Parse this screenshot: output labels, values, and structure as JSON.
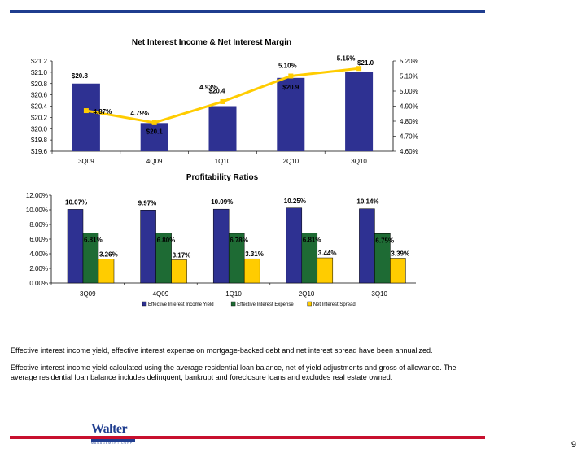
{
  "page": {
    "number": "9"
  },
  "chart_data": [
    {
      "type": "bar+line",
      "title": "Net Interest Income & Net Interest Margin",
      "categories": [
        "3Q09",
        "4Q09",
        "1Q10",
        "2Q10",
        "3Q10"
      ],
      "bars": {
        "values": [
          20.8,
          20.1,
          20.4,
          20.9,
          21.0
        ],
        "labels": [
          "$20.8",
          "$20.1",
          "$20.4",
          "$20.9",
          "$21.0"
        ]
      },
      "line": {
        "values": [
          4.87,
          4.79,
          4.93,
          5.1,
          5.15
        ],
        "labels": [
          "4.87%",
          "4.79%",
          "4.93%",
          "5.10%",
          "5.15%"
        ]
      },
      "y_left": {
        "range": [
          19.6,
          21.2
        ],
        "ticks": [
          "$19.6",
          "$19.8",
          "$20.0",
          "$20.2",
          "$20.4",
          "$20.6",
          "$20.8",
          "$21.0",
          "$21.2"
        ]
      },
      "y_right": {
        "range": [
          4.6,
          5.2
        ],
        "ticks": [
          "4.60%",
          "4.70%",
          "4.80%",
          "4.90%",
          "5.00%",
          "5.10%",
          "5.20%"
        ]
      },
      "colors": {
        "bar": "#2e3192",
        "line": "#ffcc00"
      }
    },
    {
      "type": "bar",
      "title": "Profitability Ratios",
      "categories": [
        "3Q09",
        "4Q09",
        "1Q10",
        "2Q10",
        "3Q10"
      ],
      "ylim": [
        0,
        12
      ],
      "y_ticks": [
        "0.00%",
        "2.00%",
        "4.00%",
        "6.00%",
        "8.00%",
        "10.00%",
        "12.00%"
      ],
      "series": [
        {
          "name": "Effective Interest Income Yield",
          "values": [
            10.07,
            9.97,
            10.09,
            10.25,
            10.14
          ],
          "labels": [
            "10.07%",
            "9.97%",
            "10.09%",
            "10.25%",
            "10.14%"
          ],
          "color": "#2e3192"
        },
        {
          "name": "Effective Interest Expense",
          "values": [
            6.81,
            6.8,
            6.78,
            6.81,
            6.75
          ],
          "labels": [
            "6.81%",
            "6.80%",
            "6.78%",
            "6.81%",
            "6.75%"
          ],
          "color": "#1e6b34"
        },
        {
          "name": "Net Interest Spread",
          "values": [
            3.26,
            3.17,
            3.31,
            3.44,
            3.39
          ],
          "labels": [
            "3.26%",
            "3.17%",
            "3.31%",
            "3.44%",
            "3.39%"
          ],
          "color": "#ffcc00"
        }
      ],
      "legend": "bottom"
    }
  ],
  "notes": [
    "Effective interest income yield, effective interest expense on mortgage-backed debt and net interest spread have been annualized.",
    "Effective interest income yield calculated using the average residential loan balance, net of yield adjustments and gross of allowance.  The average residential loan balance includes delinquent, bankrupt and foreclosure loans and excludes real estate owned."
  ],
  "logo": {
    "main": "Walter",
    "sub1": "INVESTMENT",
    "sub2": "MANAGEMENT CORP."
  }
}
